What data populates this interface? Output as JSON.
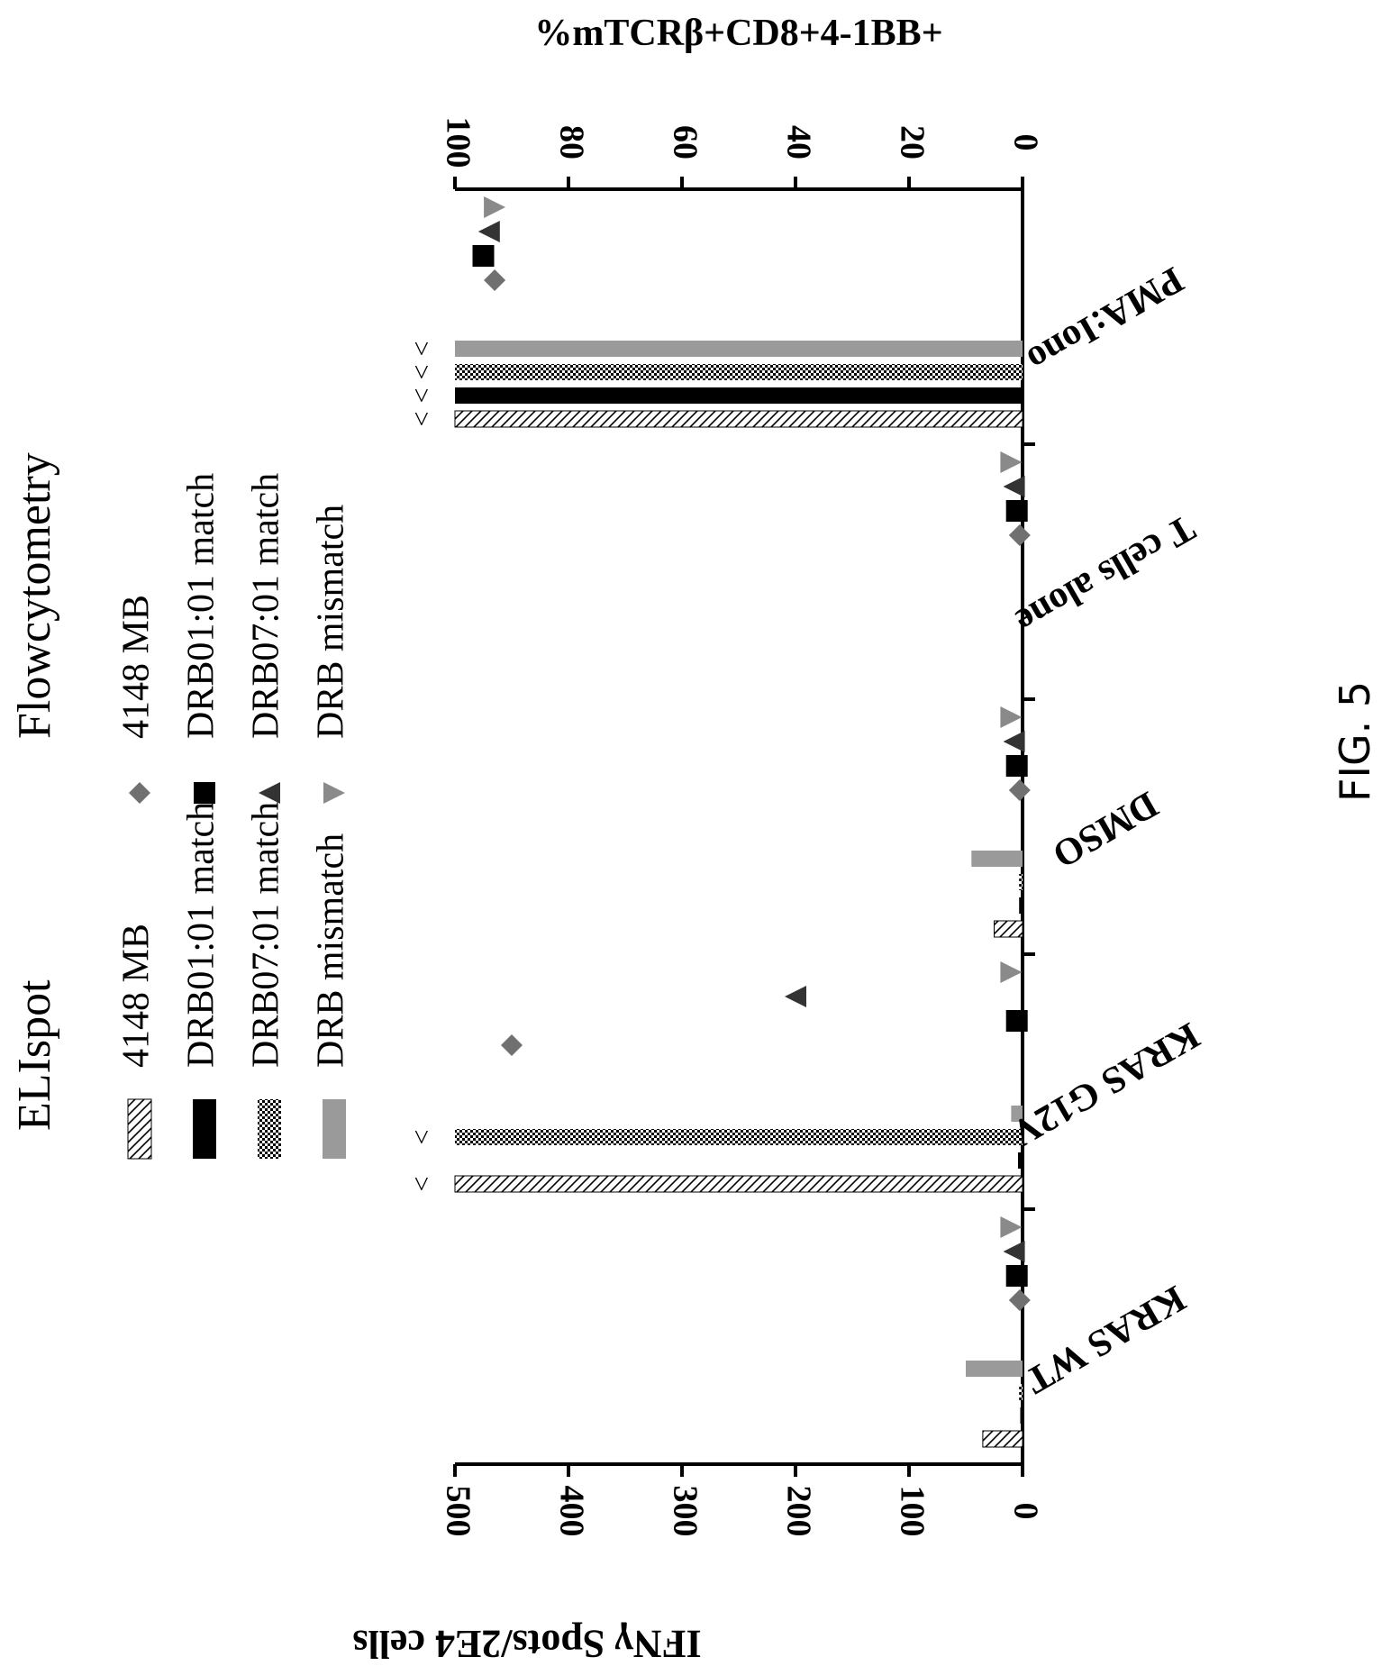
{
  "figure_label": "FIG. 5",
  "chart_data": {
    "type": "bar",
    "orientation": "rotated-90-clockwise",
    "categories": [
      "KRAS WT",
      "KRAS G12V",
      "DMSO",
      "T cells alone",
      "PMA:Iono"
    ],
    "left_axis": {
      "label": "IFNγ Spots/2E4 cells",
      "range": [
        0,
        500
      ],
      "ticks": [
        "0",
        "100",
        "200",
        "300",
        "400",
        "500"
      ]
    },
    "right_axis": {
      "label": "%mTCRβ+CD8+4-1BB+",
      "range": [
        0,
        100
      ],
      "ticks": [
        "0",
        "20",
        "40",
        "60",
        "80",
        "100"
      ]
    },
    "elispot": {
      "title": "ELIspot",
      "series": [
        {
          "name": "4148 MB",
          "pattern": "hatch",
          "values": [
            35,
            500,
            25,
            0,
            500
          ],
          "above_scale": [
            false,
            true,
            false,
            false,
            true
          ]
        },
        {
          "name": "DRB01:01 match",
          "pattern": "solid-black",
          "values": [
            2,
            4,
            3,
            0,
            500
          ],
          "above_scale": [
            false,
            false,
            false,
            false,
            true
          ]
        },
        {
          "name": "DRB07:01 match",
          "pattern": "checker",
          "values": [
            3,
            500,
            3,
            0,
            500
          ],
          "above_scale": [
            false,
            true,
            false,
            false,
            true
          ]
        },
        {
          "name": "DRB mismatch",
          "pattern": "solid-gray",
          "values": [
            50,
            10,
            45,
            0,
            500
          ],
          "above_scale": [
            false,
            false,
            false,
            false,
            true
          ]
        }
      ]
    },
    "flowcytometry": {
      "title": "Flowcytometry",
      "series": [
        {
          "name": "4148 MB",
          "marker": "diamond",
          "color": "#707070",
          "values": [
            0.5,
            90,
            0.5,
            0.5,
            93
          ]
        },
        {
          "name": "DRB01:01 match",
          "marker": "square",
          "color": "#000000",
          "values": [
            1,
            1,
            1,
            1,
            95
          ]
        },
        {
          "name": "DRB07:01 match",
          "marker": "triangle-up",
          "color": "#333333",
          "values": [
            1.5,
            40,
            1.5,
            1.5,
            94
          ]
        },
        {
          "name": "DRB mismatch",
          "marker": "triangle-down",
          "color": "#8a8a8a",
          "values": [
            2,
            2,
            2,
            2,
            93
          ]
        }
      ]
    },
    "above_scale_marker": ">"
  }
}
